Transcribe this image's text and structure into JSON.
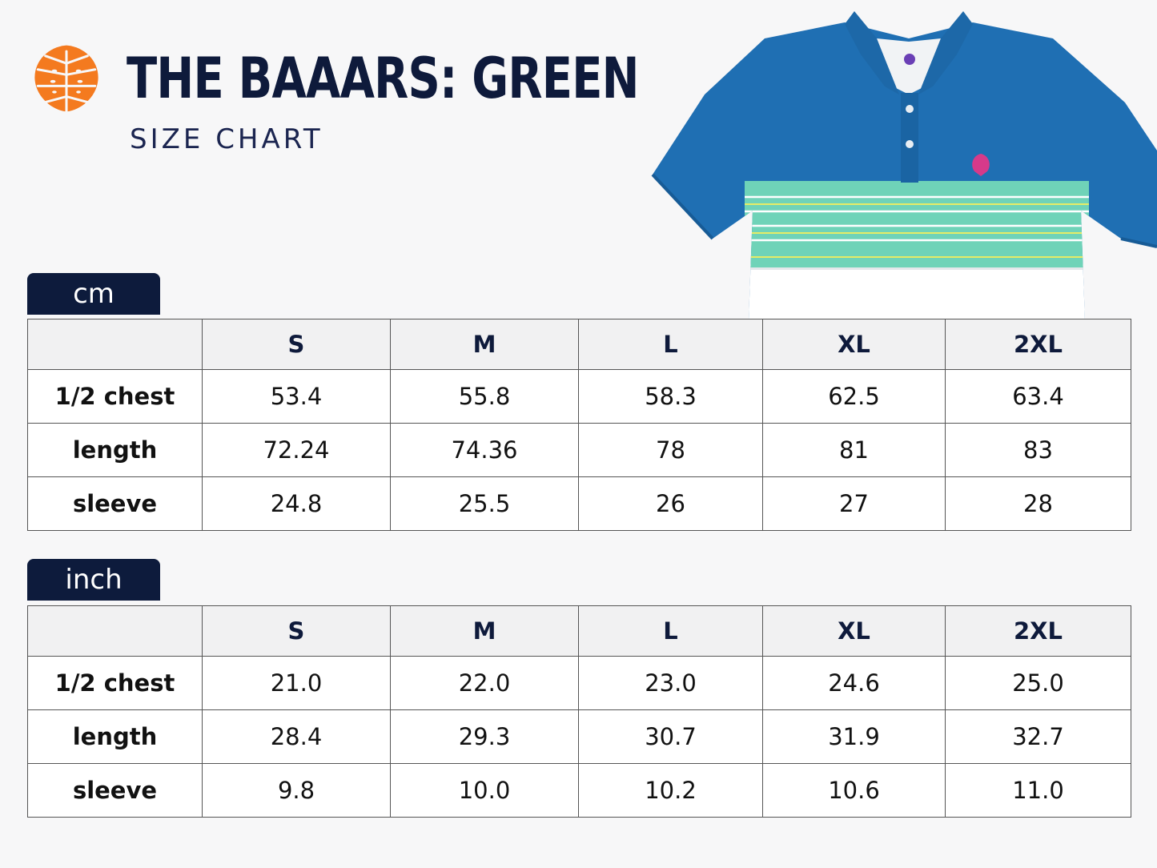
{
  "brand": {
    "logo_icon": "monstera-leaf-icon",
    "logo_color": "#f47a1f",
    "title": "THE BAAARS: GREEN",
    "subtitle": "SIZE CHART",
    "title_color": "#0e1a3b"
  },
  "product_image": {
    "icon": "polo-shirt-illustration",
    "body_color": "#1f6fb3",
    "stripe_color": "#6fd3b8",
    "hem_color": "#ffffff"
  },
  "cm_table": {
    "unit_label": "cm",
    "corner": "",
    "columns": [
      "S",
      "M",
      "L",
      "XL",
      "2XL"
    ],
    "rows": [
      {
        "label": "1/2 chest",
        "values": [
          "53.4",
          "55.8",
          "58.3",
          "62.5",
          "63.4"
        ]
      },
      {
        "label": "length",
        "values": [
          "72.24",
          "74.36",
          "78",
          "81",
          "83"
        ]
      },
      {
        "label": "sleeve",
        "values": [
          "24.8",
          "25.5",
          "26",
          "27",
          "28"
        ]
      }
    ]
  },
  "inch_table": {
    "unit_label": "inch",
    "corner": "",
    "columns": [
      "S",
      "M",
      "L",
      "XL",
      "2XL"
    ],
    "rows": [
      {
        "label": "1/2 chest",
        "values": [
          "21.0",
          "22.0",
          "23.0",
          "24.6",
          "25.0"
        ]
      },
      {
        "label": "length",
        "values": [
          "28.4",
          "29.3",
          "30.7",
          "31.9",
          "32.7"
        ]
      },
      {
        "label": "sleeve",
        "values": [
          "9.8",
          "10.0",
          "10.2",
          "10.6",
          "11.0"
        ]
      }
    ]
  },
  "colors": {
    "tab_background": "#0d1b3c",
    "page_background": "#f7f7f8"
  }
}
